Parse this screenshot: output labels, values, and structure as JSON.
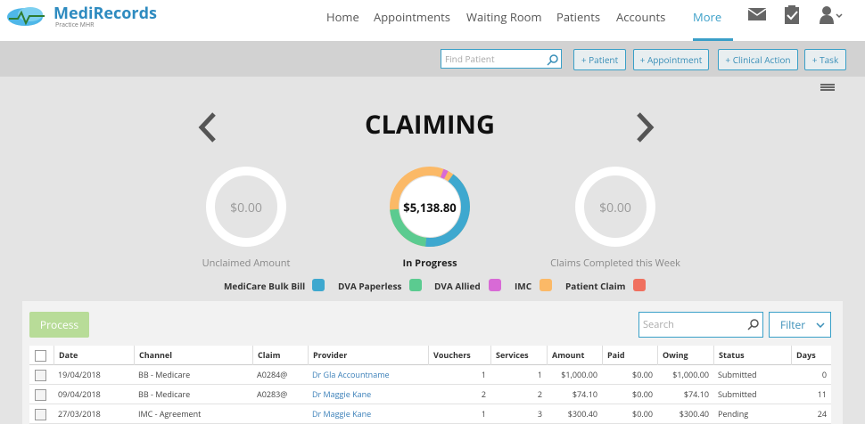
{
  "nav": {
    "brand": "MediRecords",
    "subbrand": "Practice MHR",
    "items": [
      "Home",
      "Appointments",
      "Waiting Room",
      "Patients",
      "Accounts",
      "More"
    ]
  },
  "toolbar": {
    "search_placeholder": "Find Patient",
    "buttons": [
      "+ Patient",
      "+ Appointment",
      "+ Clinical Action",
      "+ Task"
    ]
  },
  "title": "CLAIMING",
  "summary": [
    {
      "amount": "$0.00",
      "label": "Unclaimed Amount"
    },
    {
      "amount": "$5,138.80",
      "label": "In Progress"
    },
    {
      "amount": "$0.00",
      "label": "Claims Completed this Week"
    }
  ],
  "legend": [
    {
      "name": "MediCare Bulk Bill",
      "color": "#3ea8cf"
    },
    {
      "name": "DVA Paperless",
      "color": "#5bcb90"
    },
    {
      "name": "DVA Allied",
      "color": "#d86ad6"
    },
    {
      "name": "IMC",
      "color": "#fbb967"
    },
    {
      "name": "Patient Claim",
      "color": "#f0705f"
    }
  ],
  "table": {
    "process": "Process",
    "search_placeholder": "Search",
    "filter": "Filter",
    "headers": [
      "Date",
      "Channel",
      "Claim",
      "Provider",
      "Vouchers",
      "Services",
      "Amount",
      "Paid",
      "Owing",
      "Status",
      "Days"
    ],
    "rows": [
      [
        "19/04/2018",
        "BB - Medicare",
        "A0284@",
        "Dr Gla Accountname",
        1,
        1,
        "$1,000.00",
        "$0.00",
        "$1,000.00",
        "Submitted",
        0
      ],
      [
        "09/04/2018",
        "BB - Medicare",
        "A0283@",
        "Dr Maggie Kane",
        2,
        2,
        "$74.10",
        "$0.00",
        "$74.10",
        "Submitted",
        11
      ],
      [
        "27/03/2018",
        "IMC - Agreement",
        "",
        "Dr Maggie Kane",
        1,
        3,
        "$300.40",
        "$0.00",
        "$300.40",
        "Pending",
        24
      ]
    ]
  }
}
